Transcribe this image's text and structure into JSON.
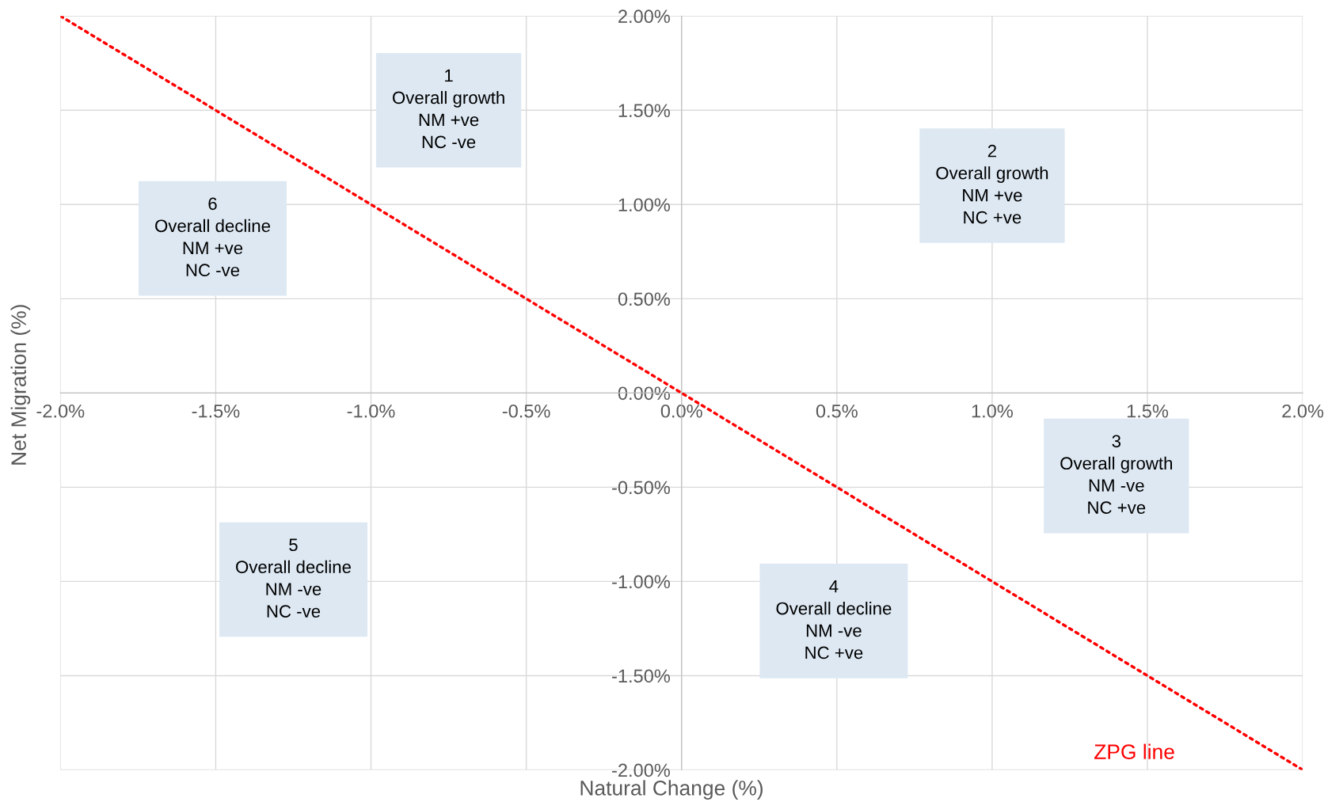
{
  "chart_data": {
    "type": "line",
    "xlabel": "Natural Change (%)",
    "ylabel": "Net Migration (%)",
    "xlim": [
      -2,
      2
    ],
    "ylim": [
      -2,
      2
    ],
    "xticks": [
      {
        "value": -2,
        "label": "-2.0%"
      },
      {
        "value": -1.5,
        "label": "-1.5%"
      },
      {
        "value": -1,
        "label": "-1.0%"
      },
      {
        "value": -0.5,
        "label": "-0.5%"
      },
      {
        "value": 0,
        "label": "0.0%"
      },
      {
        "value": 0.5,
        "label": "0.5%"
      },
      {
        "value": 1,
        "label": "1.0%"
      },
      {
        "value": 1.5,
        "label": "1.5%"
      },
      {
        "value": 2,
        "label": "2.0%"
      }
    ],
    "yticks": [
      {
        "value": -2,
        "label": "-2.00%"
      },
      {
        "value": -1.5,
        "label": "-1.50%"
      },
      {
        "value": -1,
        "label": "-1.00%"
      },
      {
        "value": -0.5,
        "label": "-0.50%"
      },
      {
        "value": 0,
        "label": "0.00%"
      },
      {
        "value": 0.5,
        "label": "0.50%"
      },
      {
        "value": 1,
        "label": "1.00%"
      },
      {
        "value": 1.5,
        "label": "1.50%"
      },
      {
        "value": 2,
        "label": "2.00%"
      }
    ],
    "grid": true,
    "line_style": "dotted",
    "series": [
      {
        "name": "ZPG line",
        "color": "#ff0000",
        "x": [
          -2,
          2
        ],
        "values": [
          2,
          -2
        ]
      }
    ],
    "annotations": [
      "1\nOverall growth\nNM +ve\nNC -ve",
      "2\nOverall growth\nNM +ve\nNC +ve",
      "3\nOverall growth\nNM -ve\nNC +ve",
      "4\nOverall decline\nNM -ve\nNC +ve",
      "5\nOverall decline\nNM -ve\nNC -ve",
      "6\nOverall decline\nNM +ve\nNC -ve"
    ]
  }
}
